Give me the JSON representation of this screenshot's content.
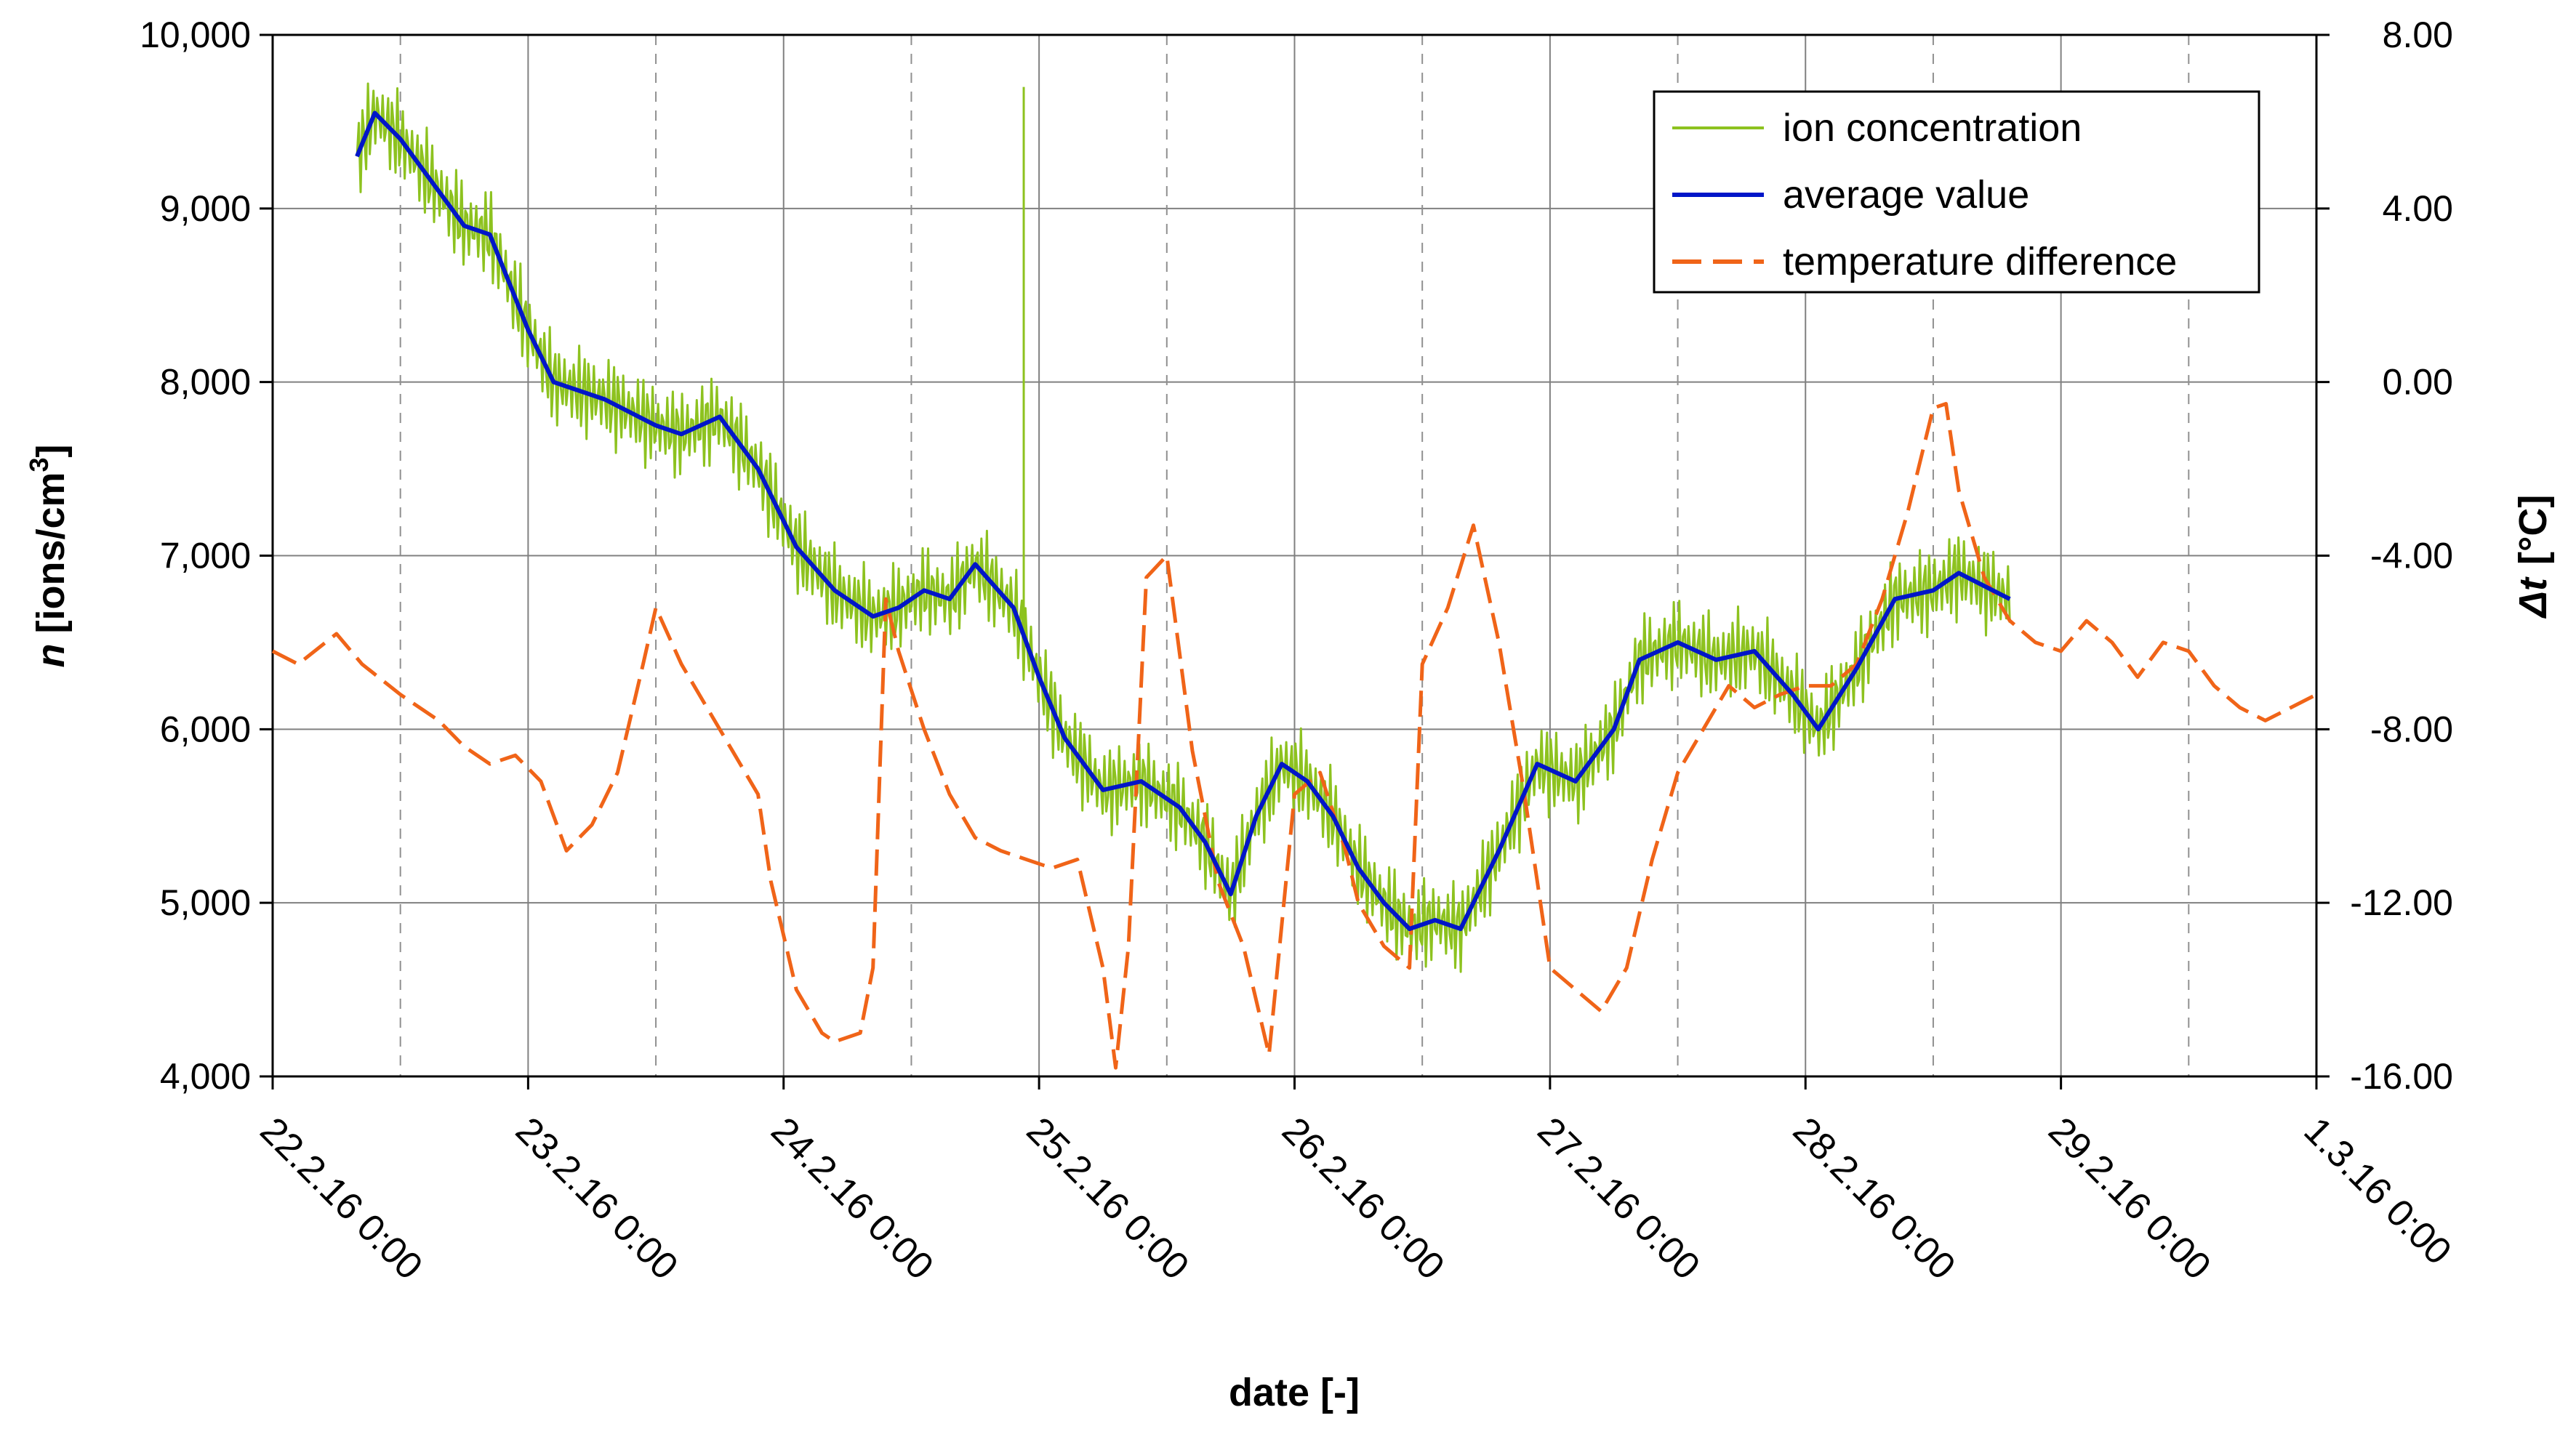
{
  "chart_data": {
    "type": "line",
    "title": "",
    "xlabel": "date [-]",
    "ylabel": {
      "symbol": "n",
      "text": "[ions/cm",
      "sup": "3",
      "close": "]"
    },
    "y2label": {
      "symbol": "Δt",
      "text": "[°C]"
    },
    "xlim": [
      0,
      8
    ],
    "ylim": [
      4000,
      10000
    ],
    "y2lim": [
      -16,
      8
    ],
    "x_tick_labels": [
      "22.2.16 0:00",
      "23.2.16 0:00",
      "24.2.16 0:00",
      "25.2.16 0:00",
      "26.2.16 0:00",
      "27.2.16 0:00",
      "28.2.16 0:00",
      "29.2.16 0:00",
      "1.3.16 0:00"
    ],
    "y_ticks": [
      4000,
      5000,
      6000,
      7000,
      8000,
      9000,
      10000
    ],
    "y_tick_labels": [
      "4,000",
      "5,000",
      "6,000",
      "7,000",
      "8,000",
      "9,000",
      "10,000"
    ],
    "y2_ticks": [
      -16,
      -12,
      -8,
      -4,
      0,
      4,
      8
    ],
    "y2_tick_labels": [
      "-16.00",
      "-12.00",
      "-8.00",
      "-4.00",
      "0.00",
      "4.00",
      "8.00"
    ],
    "gridlines": "horizontal major + vertical daily solid + dashed at noon",
    "legend_position": "top-right",
    "series": [
      {
        "name": "ion concentration",
        "axis": "left",
        "color": "#8dc21f",
        "style": "oscillating",
        "amplitude": 280,
        "x": [
          0.33,
          0.4,
          0.5,
          0.6,
          0.75,
          0.85,
          1.0,
          1.1,
          1.3,
          1.5,
          1.6,
          1.75,
          1.9,
          2.05,
          2.2,
          2.35,
          2.45,
          2.55,
          2.65,
          2.75,
          2.9,
          3.0,
          3.1,
          3.25,
          3.4,
          3.55,
          3.65,
          3.75,
          3.85,
          3.95,
          4.05,
          4.15,
          4.25,
          4.35,
          4.45,
          4.55,
          4.65,
          4.8,
          4.95,
          5.1,
          5.25,
          5.35,
          5.5,
          5.65,
          5.8,
          5.95,
          6.05,
          6.2,
          6.35,
          6.5,
          6.6,
          6.8
        ],
        "values": [
          9300,
          9550,
          9400,
          9200,
          8900,
          8850,
          8300,
          8000,
          7900,
          7750,
          7700,
          7800,
          7500,
          7050,
          6800,
          6650,
          6700,
          6800,
          6750,
          6950,
          6700,
          6300,
          5950,
          5650,
          5700,
          5550,
          5350,
          5050,
          5500,
          5800,
          5700,
          5500,
          5200,
          5000,
          4850,
          4900,
          4850,
          5300,
          5800,
          5700,
          6000,
          6400,
          6500,
          6400,
          6450,
          6200,
          6000,
          6350,
          6750,
          6800,
          6900,
          6750
        ]
      },
      {
        "name": "average value",
        "axis": "left",
        "color": "#0016c8",
        "style": "solid",
        "x": [
          0.33,
          0.4,
          0.5,
          0.6,
          0.75,
          0.85,
          1.0,
          1.1,
          1.3,
          1.5,
          1.6,
          1.75,
          1.9,
          2.05,
          2.2,
          2.35,
          2.45,
          2.55,
          2.65,
          2.75,
          2.9,
          3.0,
          3.1,
          3.25,
          3.4,
          3.55,
          3.65,
          3.75,
          3.85,
          3.95,
          4.05,
          4.15,
          4.25,
          4.35,
          4.45,
          4.55,
          4.65,
          4.8,
          4.95,
          5.1,
          5.25,
          5.35,
          5.5,
          5.65,
          5.8,
          5.95,
          6.05,
          6.2,
          6.35,
          6.5,
          6.6,
          6.8
        ],
        "values": [
          9300,
          9550,
          9400,
          9200,
          8900,
          8850,
          8300,
          8000,
          7900,
          7750,
          7700,
          7800,
          7500,
          7050,
          6800,
          6650,
          6700,
          6800,
          6750,
          6950,
          6700,
          6300,
          5950,
          5650,
          5700,
          5550,
          5350,
          5050,
          5500,
          5800,
          5700,
          5500,
          5200,
          5000,
          4850,
          4900,
          4850,
          5300,
          5800,
          5700,
          6000,
          6400,
          6500,
          6400,
          6450,
          6200,
          6000,
          6350,
          6750,
          6800,
          6900,
          6750
        ]
      },
      {
        "name": "temperature difference",
        "axis": "right",
        "color": "#f06418",
        "style": "dashed",
        "x": [
          0.0,
          0.1,
          0.25,
          0.35,
          0.5,
          0.65,
          0.75,
          0.85,
          0.95,
          1.05,
          1.15,
          1.25,
          1.35,
          1.45,
          1.5,
          1.6,
          1.7,
          1.8,
          1.9,
          1.95,
          2.05,
          2.15,
          2.2,
          2.3,
          2.35,
          2.4,
          2.45,
          2.55,
          2.65,
          2.75,
          2.85,
          2.95,
          3.05,
          3.15,
          3.25,
          3.3,
          3.35,
          3.42,
          3.5,
          3.6,
          3.7,
          3.8,
          3.9,
          4.0,
          4.1,
          4.2,
          4.25,
          4.35,
          4.45,
          4.5,
          4.6,
          4.7,
          4.8,
          4.9,
          5.0,
          5.1,
          5.2,
          5.3,
          5.4,
          5.5,
          5.6,
          5.7,
          5.8,
          5.9,
          6.0,
          6.1,
          6.2,
          6.3,
          6.4,
          6.5,
          6.55,
          6.6,
          6.7,
          6.8,
          6.9,
          7.0,
          7.1,
          7.2,
          7.3,
          7.4,
          7.5,
          7.6,
          7.7,
          7.8,
          7.9,
          8.0
        ],
        "values": [
          -6.2,
          -6.5,
          -5.8,
          -6.5,
          -7.2,
          -7.8,
          -8.4,
          -8.8,
          -8.6,
          -9.2,
          -10.8,
          -10.2,
          -9.0,
          -6.5,
          -5.2,
          -6.5,
          -7.5,
          -8.5,
          -9.5,
          -11.5,
          -14.0,
          -15.0,
          -15.2,
          -15.0,
          -13.5,
          -5.0,
          -6.2,
          -8.0,
          -9.5,
          -10.5,
          -10.8,
          -11.0,
          -11.2,
          -11.0,
          -13.5,
          -15.8,
          -13.0,
          -4.5,
          -4.0,
          -8.5,
          -11.5,
          -13.0,
          -15.5,
          -9.5,
          -9.0,
          -10.8,
          -12.0,
          -13.0,
          -13.5,
          -6.5,
          -5.2,
          -3.3,
          -6.0,
          -9.5,
          -13.5,
          -14.0,
          -14.5,
          -13.5,
          -11.0,
          -9.0,
          -8.0,
          -7.0,
          -7.5,
          -7.2,
          -7.0,
          -7.0,
          -6.5,
          -5.0,
          -3.0,
          -0.6,
          -0.5,
          -2.5,
          -4.5,
          -5.5,
          -6.0,
          -6.2,
          -5.5,
          -6.0,
          -6.8,
          -6.0,
          -6.2,
          -7.0,
          -7.5,
          -7.8,
          -7.5,
          -7.2
        ]
      }
    ],
    "notable_spike": {
      "series": "ion concentration",
      "x": 2.94,
      "value": 9700
    }
  }
}
